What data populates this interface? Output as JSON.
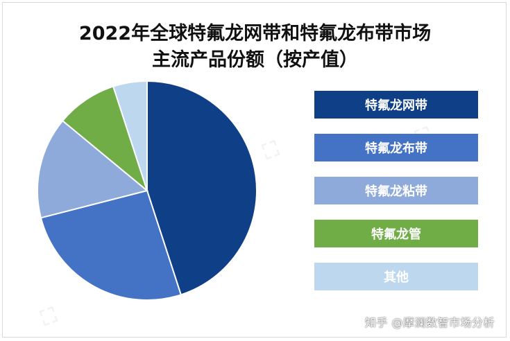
{
  "title_line1": "2022年全球特氟龙网带和特氟龙布带市场",
  "title_line2": "主流产品份额（按产值）",
  "watermark": "知乎 @摩澜数智市场分析",
  "chart_data": {
    "type": "pie",
    "categories": [
      "特氟龙网带",
      "特氟龙布带",
      "特氟龙粘带",
      "特氟龙管",
      "其他"
    ],
    "values": [
      45,
      26,
      15,
      9,
      5
    ],
    "colors": [
      "#0f3f86",
      "#4472c4",
      "#8eaadb",
      "#70ad47",
      "#bdd7ee"
    ],
    "legend_position": "right"
  }
}
